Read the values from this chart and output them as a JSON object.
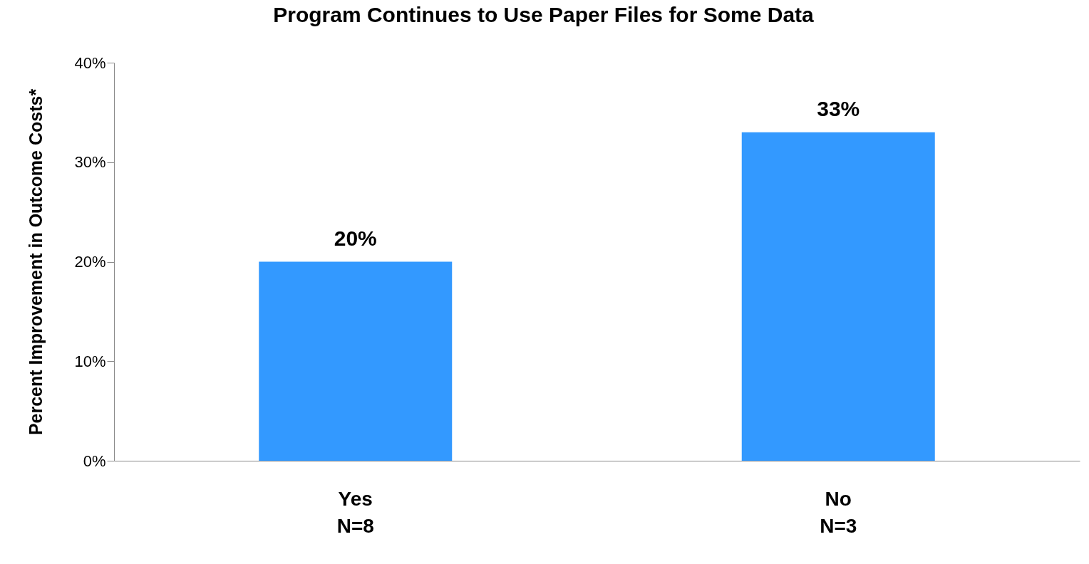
{
  "chart_data": {
    "type": "bar",
    "title": "Program Continues to Use Paper Files for Some Data",
    "ylabel": "Percent Improvement in Outcome Costs*",
    "categories": [
      "Yes\nN=8",
      "No\nN=3"
    ],
    "values": [
      20,
      33
    ],
    "value_labels": [
      "20%",
      "33%"
    ],
    "color": "#3399ff",
    "ylim": [
      0,
      40
    ],
    "yticks": [
      {
        "value": 0,
        "label": "0%"
      },
      {
        "value": 10,
        "label": "10%"
      },
      {
        "value": 20,
        "label": "20%"
      },
      {
        "value": 30,
        "label": "30%"
      },
      {
        "value": 40,
        "label": "40%"
      }
    ]
  }
}
